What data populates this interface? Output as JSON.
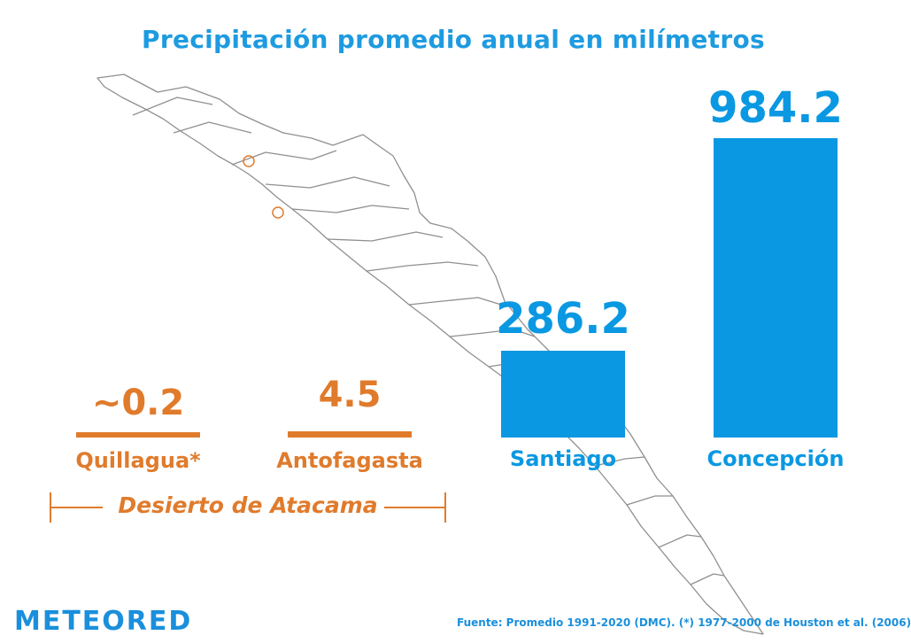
{
  "chart_data": {
    "type": "bar",
    "title": "Precipitación promedio anual en milímetros",
    "categories": [
      "Quillagua*",
      "Antofagasta",
      "Santiago",
      "Concepción"
    ],
    "values": [
      0.2,
      4.5,
      286.2,
      984.2
    ],
    "value_labels": [
      "~0.2",
      "4.5",
      "286.2",
      "984.2"
    ],
    "ylim": [
      0,
      984.2
    ],
    "grid": false,
    "colors": {
      "desert": "#e07b2c",
      "other": "#0a98e2",
      "title": "#1e9be0"
    },
    "series_color_keys": [
      "desert",
      "desert",
      "other",
      "other"
    ]
  },
  "annotation": {
    "desert_label": "Desierto de Atacama"
  },
  "brand": {
    "logo_text": "METEORED"
  },
  "source": "Fuente: Promedio 1991-2020 (DMC). (*) 1977-2000 de Houston et al. (2006)"
}
